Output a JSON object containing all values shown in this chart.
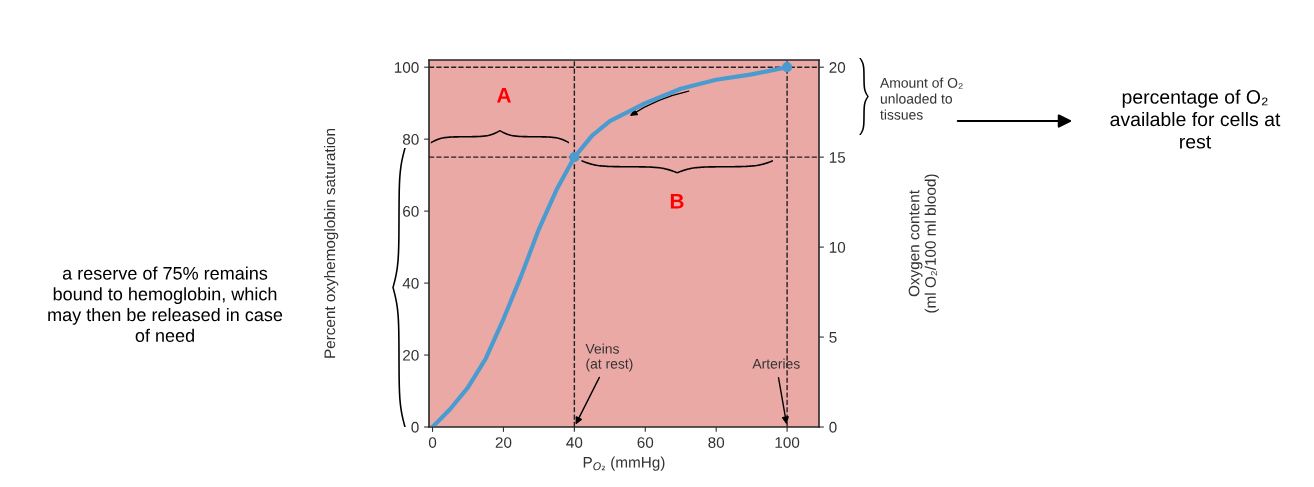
{
  "chart_data": {
    "type": "line",
    "xlabel": "P$_{O₂}$ (mmHg)",
    "ylabel": "Percent oxyhemoglobin saturation",
    "y2label": "Oxygen content\n(ml O₂/100 ml blood)",
    "series": [
      {
        "color": "#4a9bd0",
        "x": [
          0,
          5,
          10,
          15,
          20,
          25,
          30,
          35,
          40,
          45,
          50,
          60,
          70,
          80,
          90,
          100
        ],
        "values": [
          0,
          5,
          11,
          19,
          30,
          42,
          55,
          66,
          75,
          81,
          85,
          90,
          94,
          96.5,
          98,
          100
        ]
      },
      {
        "type": "scatter",
        "color": "#4a9bd0",
        "x": [
          40,
          100
        ],
        "values": [
          75,
          100
        ]
      }
    ],
    "xlim": [
      -1,
      109
    ],
    "xticks": [
      0,
      20,
      40,
      60,
      80,
      100
    ],
    "ylim": [
      0,
      102
    ],
    "yticks": [
      0,
      20,
      40,
      60,
      80,
      100
    ],
    "y2lim": [
      0,
      20.4
    ],
    "y2ticks": [
      0,
      5,
      10,
      15,
      20
    ],
    "ref_lines": [
      {
        "axis": "y",
        "value": 100,
        "line_style": "dashed",
        "color": "#222222"
      },
      {
        "axis": "y",
        "value": 75,
        "line_style": "dashed",
        "color": "#222222"
      },
      {
        "axis": "x",
        "value": 40,
        "line_style": "dashed",
        "color": "#222222"
      },
      {
        "axis": "x",
        "value": 100,
        "line_style": "dashed",
        "color": "#222222"
      }
    ],
    "annotations": [
      "A",
      "B",
      {
        "text": "Veins\n(at rest)",
        "x": 40,
        "y": 0
      },
      {
        "text": "Arteries",
        "x": 100,
        "y": 0
      },
      "Amount of O₂\nunloaded to\ntissues",
      "percentage of O₂\navailable for cells at\nrest",
      "a reserve of 75% remains\nbound to hemoglobin, which\nmay then be released in case\nof need"
    ],
    "grid": false,
    "legend": false
  }
}
